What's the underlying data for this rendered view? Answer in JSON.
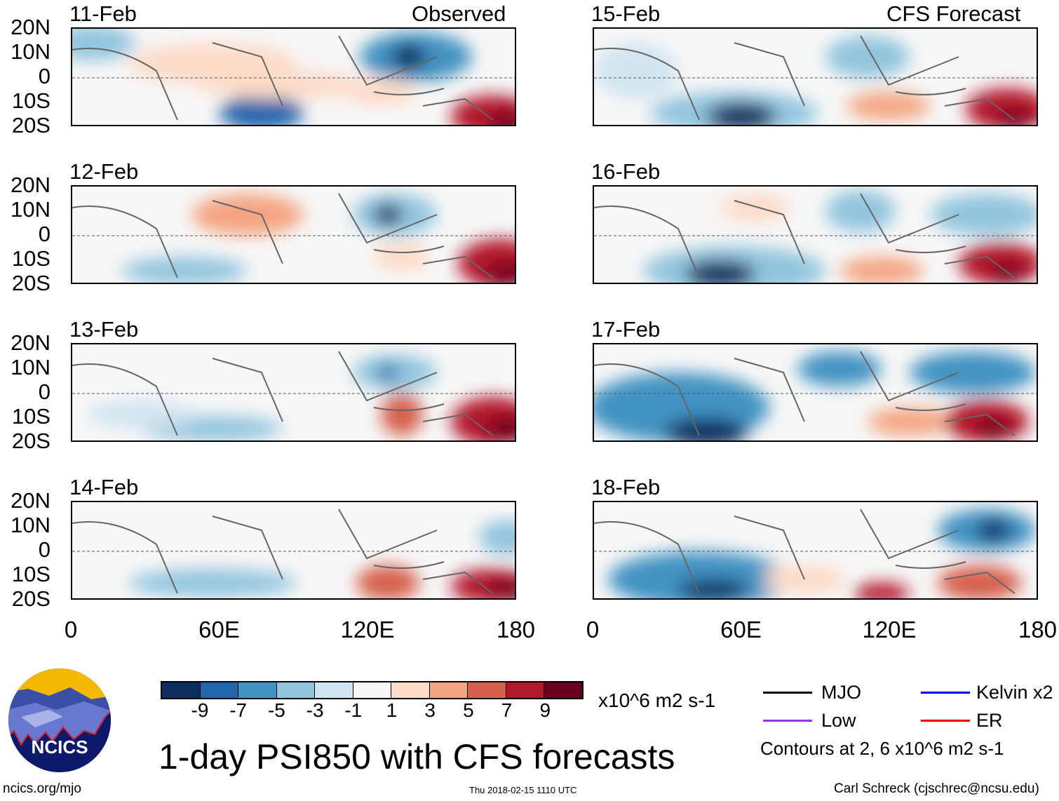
{
  "header": {
    "left_label": "Observed",
    "right_label": "CFS Forecast"
  },
  "panels": [
    {
      "date": "11-Feb",
      "column": "observed"
    },
    {
      "date": "12-Feb",
      "column": "observed"
    },
    {
      "date": "13-Feb",
      "column": "observed"
    },
    {
      "date": "14-Feb",
      "column": "observed"
    },
    {
      "date": "15-Feb",
      "column": "forecast"
    },
    {
      "date": "16-Feb",
      "column": "forecast"
    },
    {
      "date": "17-Feb",
      "column": "forecast"
    },
    {
      "date": "18-Feb",
      "column": "forecast"
    }
  ],
  "lat_ticks": [
    "20N",
    "10N",
    "0",
    "10S",
    "20S"
  ],
  "lon_ticks": [
    "0",
    "60E",
    "120E",
    "180"
  ],
  "colorbar": {
    "colors": [
      "#0b2d5e",
      "#2166ac",
      "#4393c3",
      "#92c5de",
      "#d1e5f0",
      "#f7f7f7",
      "#fddbc7",
      "#f4a582",
      "#d6604d",
      "#b2182b",
      "#67001f"
    ],
    "labels": [
      "-9",
      "-7",
      "-5",
      "-3",
      "-1",
      "1",
      "3",
      "5",
      "7",
      "9"
    ],
    "units": "x10^6 m2 s-1"
  },
  "title": "1-day PSI850 with CFS forecasts",
  "legend": {
    "items": [
      {
        "label": "MJO",
        "color": "#000000"
      },
      {
        "label": "Kelvin x2",
        "color": "#0000ff"
      },
      {
        "label": "Low",
        "color": "#9933ee"
      },
      {
        "label": "ER",
        "color": "#ff0000"
      }
    ],
    "contours_note": "Contours at 2, 6 x10^6 m2 s-1"
  },
  "logo": {
    "text": "NCICS"
  },
  "footer": {
    "url": "ncics.org/mjo",
    "timestamp": "Thu 2018-02-15 1110 UTC",
    "author": "Carl Schreck (cjschrec@ncsu.edu)"
  }
}
